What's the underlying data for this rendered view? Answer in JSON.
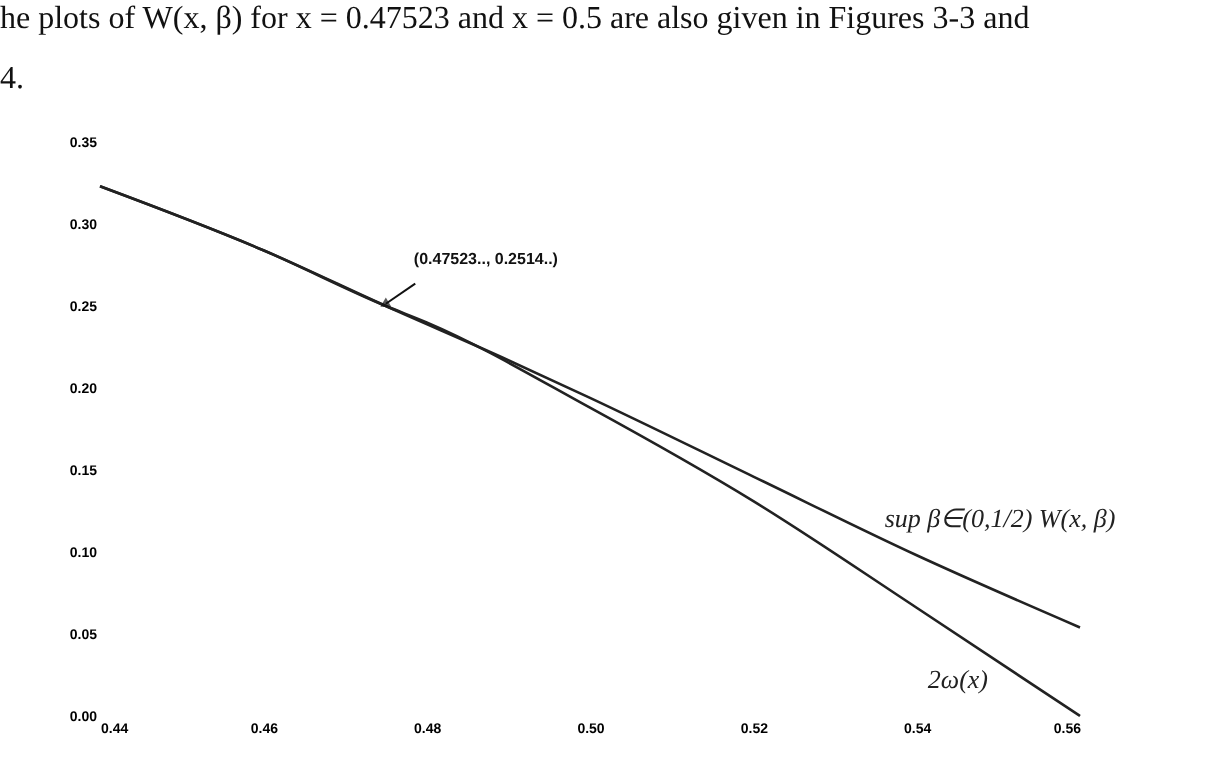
{
  "chart_data": {
    "type": "line",
    "x": [
      0.44,
      0.46,
      0.475,
      0.49,
      0.5,
      0.52,
      0.54,
      0.56
    ],
    "series": [
      {
        "name": "sup β∈(0,1/2) W(x, β)",
        "color": "#222222",
        "values": [
          0.323,
          0.284,
          0.25,
          0.217,
          0.194,
          0.146,
          0.098,
          0.054
        ]
      },
      {
        "name": "2ω(x)",
        "color": "#222222",
        "x": [
          0.44,
          0.46,
          0.475,
          0.48,
          0.5,
          0.52,
          0.54,
          0.56
        ],
        "values": [
          0.323,
          0.284,
          0.25,
          0.24,
          0.188,
          0.131,
          0.066,
          0.0
        ]
      }
    ],
    "xlim": [
      0.44,
      0.56
    ],
    "xticks": [
      0.44,
      0.46,
      0.48,
      {
        "value": 0.5,
        "label": "0.50"
      },
      0.52,
      0.54,
      0.56
    ],
    "ylim": [
      0,
      0.35
    ],
    "yticks": [
      {
        "value": 0,
        "label": "0.00"
      },
      {
        "value": 0.05,
        "label": "0.05"
      },
      {
        "value": 0.1,
        "label": "0.10"
      },
      {
        "value": 0.15,
        "label": "0.15"
      },
      {
        "value": 0.2,
        "label": "0.20"
      },
      {
        "value": 0.25,
        "label": "0.25"
      },
      {
        "value": 0.3,
        "label": "0.30"
      },
      {
        "value": 0.35,
        "label": "0.35"
      }
    ],
    "grid": false,
    "marker": "none",
    "line_style": "solid",
    "annotations": [
      "he plots of W(x, β) for x = 0.47523 and x = 0.5 are also given in Figures 3-3 and",
      "4.",
      {
        "text": "(0.47523.., 0.2514..)",
        "x": 0.475,
        "y": 0.2514
      }
    ]
  }
}
